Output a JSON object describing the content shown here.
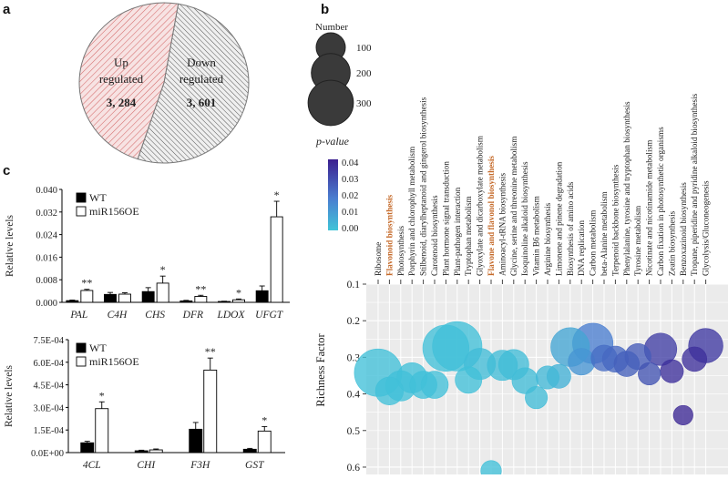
{
  "panels": {
    "a": "a",
    "b": "b",
    "c": "c"
  },
  "chart_data": [
    {
      "type": "pie",
      "panel": "a",
      "slices": [
        {
          "name": "up",
          "label_line1": "Up",
          "label_line2": "regulated",
          "value_label": "3, 284",
          "value": 3284,
          "color": "#f6dede",
          "hatch": "#d46a6a"
        },
        {
          "name": "down",
          "label_line1": "Down",
          "label_line2": "regulated",
          "value_label": "3, 601",
          "value": 3601,
          "color": "#ececec",
          "hatch": "#555555"
        }
      ]
    },
    {
      "type": "bar",
      "panel": "c-top",
      "ylabel": "Relative levels",
      "ylim": [
        0,
        0.04
      ],
      "yticks": [
        "0.000",
        "0.008",
        "0.016",
        "0.024",
        "0.032",
        "0.040"
      ],
      "categories": [
        "PAL",
        "C4H",
        "CHS",
        "DFR",
        "LDOX",
        "UFGT"
      ],
      "series": [
        {
          "name": "WT",
          "color": "#000000",
          "values": [
            0.0006,
            0.0028,
            0.0038,
            0.0005,
            0.0003,
            0.0041
          ],
          "errors": [
            0.0002,
            0.0007,
            0.0014,
            0.0002,
            0.0001,
            0.0017
          ]
        },
        {
          "name": "miR156OE",
          "color": "#ffffff",
          "values": [
            0.0042,
            0.0029,
            0.0068,
            0.0021,
            0.0009,
            0.0303
          ],
          "errors": [
            0.0004,
            0.0005,
            0.0025,
            0.0004,
            0.0003,
            0.0055
          ]
        }
      ],
      "annotations": [
        "**",
        "",
        "*",
        "**",
        "*",
        "*"
      ]
    },
    {
      "type": "bar",
      "panel": "c-bottom",
      "ylabel": "Relative levels",
      "ylim": [
        0,
        0.00075
      ],
      "yticks": [
        "0.0E+00",
        "1.5E-04",
        "3.0E-04",
        "4.5E-04",
        "6.0E-04",
        "7.5E-04"
      ],
      "categories": [
        "4CL",
        "CHI",
        "F3H",
        "GST"
      ],
      "series": [
        {
          "name": "WT",
          "color": "#000000",
          "values": [
            6.5e-05,
            1.2e-05,
            0.000155,
            2.2e-05
          ],
          "errors": [
            1e-05,
            4e-06,
            4.5e-05,
            6e-06
          ]
        },
        {
          "name": "miR156OE",
          "color": "#ffffff",
          "values": [
            0.000292,
            1.8e-05,
            0.000548,
            0.000143
          ],
          "errors": [
            4.5e-05,
            6e-06,
            8e-05,
            3e-05
          ]
        }
      ],
      "annotations": [
        "*",
        "",
        "**",
        "*"
      ]
    },
    {
      "type": "scatter",
      "panel": "b",
      "ylabel": "Richness Factor",
      "ylim": [
        0.1,
        0.62
      ],
      "yticks": [
        "0.1",
        "0.2",
        "0.3",
        "0.4",
        "0.5",
        "0.6"
      ],
      "size_legend_title": "Number",
      "size_legend": [
        100,
        200,
        300
      ],
      "color_legend_title": "p-value",
      "color_ticks": [
        "0.04",
        "0.03",
        "0.02",
        "0.01",
        "0.00"
      ],
      "pathways": [
        {
          "name": "Ribosome",
          "r": 0.342,
          "n": 320,
          "p": 0.001,
          "highlight": false
        },
        {
          "name": "Flavonoid biosynthesis",
          "r": 0.392,
          "n": 90,
          "p": 0.001,
          "highlight": true
        },
        {
          "name": "Photosynthesis",
          "r": 0.378,
          "n": 110,
          "p": 0.001,
          "highlight": false
        },
        {
          "name": "Porphyrin and chlorophyll metabolism",
          "r": 0.356,
          "n": 110,
          "p": 0.001,
          "highlight": false
        },
        {
          "name": "Stilbenoid, diarylheptanoid and gingerol biosynthesis",
          "r": 0.375,
          "n": 85,
          "p": 0.001,
          "highlight": false
        },
        {
          "name": "Carotenoid biosynthesis",
          "r": 0.375,
          "n": 85,
          "p": 0.001,
          "highlight": false
        },
        {
          "name": "Plant hormone signal transduction",
          "r": 0.275,
          "n": 300,
          "p": 0.001,
          "highlight": false
        },
        {
          "name": "Plant-pathogen interaction",
          "r": 0.27,
          "n": 350,
          "p": 0.001,
          "highlight": false
        },
        {
          "name": "Tryptophan metabolism",
          "r": 0.362,
          "n": 80,
          "p": 0.001,
          "highlight": false
        },
        {
          "name": "Glyoxylate and dicarboxylate metabolism",
          "r": 0.318,
          "n": 120,
          "p": 0.002,
          "highlight": false
        },
        {
          "name": "Flavone and flavonol biosynthesis",
          "r": 0.61,
          "n": 40,
          "p": 0.001,
          "highlight": true
        },
        {
          "name": "Aminoacyl-tRNA biosynthesis",
          "r": 0.322,
          "n": 110,
          "p": 0.002,
          "highlight": false
        },
        {
          "name": "Glycine, serine and threonine metabolism",
          "r": 0.32,
          "n": 110,
          "p": 0.002,
          "highlight": false
        },
        {
          "name": "Isoquinoline alkaloid biosynthesis",
          "r": 0.364,
          "n": 75,
          "p": 0.002,
          "highlight": false
        },
        {
          "name": "Vitamin B6 metabolism",
          "r": 0.41,
          "n": 50,
          "p": 0.002,
          "highlight": false
        },
        {
          "name": "Arginine biosynthesis",
          "r": 0.355,
          "n": 55,
          "p": 0.003,
          "highlight": false
        },
        {
          "name": "Limonene and pinene degradation",
          "r": 0.352,
          "n": 60,
          "p": 0.005,
          "highlight": false
        },
        {
          "name": "Biosynthesis of amino acids",
          "r": 0.272,
          "n": 200,
          "p": 0.008,
          "highlight": false
        },
        {
          "name": "DNA replication",
          "r": 0.312,
          "n": 80,
          "p": 0.012,
          "highlight": false
        },
        {
          "name": "Carbon metabolism",
          "r": 0.262,
          "n": 220,
          "p": 0.018,
          "highlight": false
        },
        {
          "name": "beta-Alanine metabolism",
          "r": 0.302,
          "n": 75,
          "p": 0.022,
          "highlight": false
        },
        {
          "name": "Terpenoid backbone biosynthesis",
          "r": 0.305,
          "n": 75,
          "p": 0.023,
          "highlight": false
        },
        {
          "name": "Phenylalanine, tyrosine and tryptophan biosynthesis",
          "r": 0.318,
          "n": 70,
          "p": 0.025,
          "highlight": false
        },
        {
          "name": "Tyrosine metabolism",
          "r": 0.298,
          "n": 75,
          "p": 0.026,
          "highlight": false
        },
        {
          "name": "Nicotinate and nicotinamide metabolism",
          "r": 0.345,
          "n": 50,
          "p": 0.028,
          "highlight": false
        },
        {
          "name": "Carbon fixation in photosynthetic organisms",
          "r": 0.278,
          "n": 130,
          "p": 0.033,
          "highlight": false
        },
        {
          "name": "Zeatin biosynthesis",
          "r": 0.338,
          "n": 55,
          "p": 0.036,
          "highlight": false
        },
        {
          "name": "Benzoxazinoid biosynthesis",
          "r": 0.458,
          "n": 35,
          "p": 0.038,
          "highlight": false
        },
        {
          "name": "Tropane, piperidine and pyridine alkaloid biosynthesis",
          "r": 0.305,
          "n": 65,
          "p": 0.036,
          "highlight": false
        },
        {
          "name": "Glycolysis/Gluconeogenesis",
          "r": 0.268,
          "n": 150,
          "p": 0.034,
          "highlight": false
        }
      ]
    }
  ]
}
